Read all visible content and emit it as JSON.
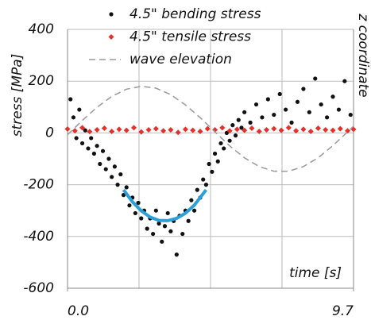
{
  "chart_data": {
    "type": "scatter",
    "xlabel": "time [s]",
    "ylabel": "stress [MPa]",
    "y2label": "z coordinate",
    "xlim": [
      0,
      9.7
    ],
    "xticks": [
      {
        "value": 0,
        "label": "0.0"
      },
      {
        "value": 9.7,
        "label": "9.7"
      }
    ],
    "xgrid": [
      2.425,
      4.85,
      7.275
    ],
    "ylim": [
      -600,
      400
    ],
    "yticks": [
      400,
      200,
      0,
      -200,
      -400,
      -600
    ],
    "y2lim": [
      -600,
      400
    ],
    "grid": true,
    "series": [
      {
        "name": "4.5\" bending stress",
        "color": "#111111",
        "mark": "dot",
        "x": [
          0.1,
          0.2,
          0.3,
          0.4,
          0.5,
          0.6,
          0.7,
          0.8,
          0.9,
          1.0,
          1.1,
          1.2,
          1.3,
          1.4,
          1.5,
          1.6,
          1.7,
          1.8,
          1.9,
          2.0,
          2.1,
          2.2,
          2.3,
          2.4,
          2.5,
          2.6,
          2.7,
          2.8,
          2.9,
          3.0,
          3.1,
          3.2,
          3.3,
          3.4,
          3.5,
          3.6,
          3.7,
          3.8,
          3.9,
          4.0,
          4.1,
          4.2,
          4.3,
          4.4,
          4.5,
          4.6,
          4.7,
          4.8,
          4.9,
          5.0,
          5.1,
          5.2,
          5.3,
          5.4,
          5.5,
          5.6,
          5.7,
          5.8,
          5.9,
          6.0,
          6.2,
          6.4,
          6.6,
          6.8,
          7.0,
          7.2,
          7.4,
          7.6,
          7.8,
          8.0,
          8.2,
          8.4,
          8.6,
          8.8,
          9.0,
          9.2,
          9.4,
          9.6
        ],
        "values": [
          130,
          60,
          -20,
          90,
          -40,
          10,
          -60,
          -20,
          -80,
          -50,
          -120,
          -70,
          -140,
          -100,
          -170,
          -130,
          -200,
          -160,
          -240,
          -210,
          -280,
          -250,
          -310,
          -270,
          -330,
          -300,
          -370,
          -330,
          -390,
          -300,
          -350,
          -420,
          -360,
          -310,
          -380,
          -340,
          -470,
          -320,
          -390,
          -300,
          -340,
          -260,
          -300,
          -220,
          -250,
          -180,
          -200,
          -120,
          -150,
          -80,
          -110,
          -40,
          -60,
          0,
          -30,
          30,
          -10,
          50,
          20,
          80,
          40,
          110,
          60,
          130,
          70,
          150,
          90,
          40,
          120,
          170,
          80,
          210,
          110,
          60,
          140,
          90,
          200,
          70
        ]
      },
      {
        "name": "4.5\" tensile stress",
        "color": "#e8302a",
        "mark": "diamond",
        "x": [
          0,
          0.25,
          0.5,
          0.75,
          1,
          1.25,
          1.5,
          1.75,
          2,
          2.25,
          2.5,
          2.75,
          3,
          3.25,
          3.5,
          3.75,
          4,
          4.25,
          4.5,
          4.75,
          5,
          5.25,
          5.5,
          5.75,
          6,
          6.25,
          6.5,
          6.75,
          7,
          7.25,
          7.5,
          7.75,
          8,
          8.25,
          8.5,
          8.75,
          9,
          9.25,
          9.5,
          9.7
        ],
        "values": [
          15,
          8,
          20,
          5,
          12,
          18,
          6,
          14,
          10,
          20,
          4,
          12,
          16,
          8,
          12,
          2,
          14,
          10,
          6,
          16,
          12,
          20,
          8,
          14,
          10,
          18,
          6,
          12,
          16,
          10,
          20,
          8,
          14,
          6,
          18,
          12,
          10,
          16,
          8,
          14
        ]
      },
      {
        "name": "wave elevation",
        "color": "#999999",
        "mark": "dashed",
        "axis": "y2",
        "x": [
          0,
          0.5,
          1,
          1.5,
          2,
          2.5,
          3,
          3.5,
          4,
          4.5,
          5,
          5.5,
          6,
          6.5,
          7,
          7.5,
          8,
          8.5,
          9,
          9.5,
          9.7
        ],
        "values": [
          -7,
          48,
          99,
          141,
          169,
          180,
          173,
          148,
          108,
          59,
          4,
          -50,
          -96,
          -130,
          -148,
          -148,
          -130,
          -96,
          -49,
          4,
          26
        ]
      },
      {
        "color": "#2b9fd9",
        "mark": "line",
        "x": [
          1.9,
          2.2,
          2.5,
          2.8,
          3.1,
          3.4,
          3.7,
          4.0,
          4.3,
          4.7
        ],
        "values": [
          -220,
          -266,
          -301,
          -325,
          -338,
          -339,
          -330,
          -310,
          -279,
          -220
        ]
      }
    ]
  }
}
